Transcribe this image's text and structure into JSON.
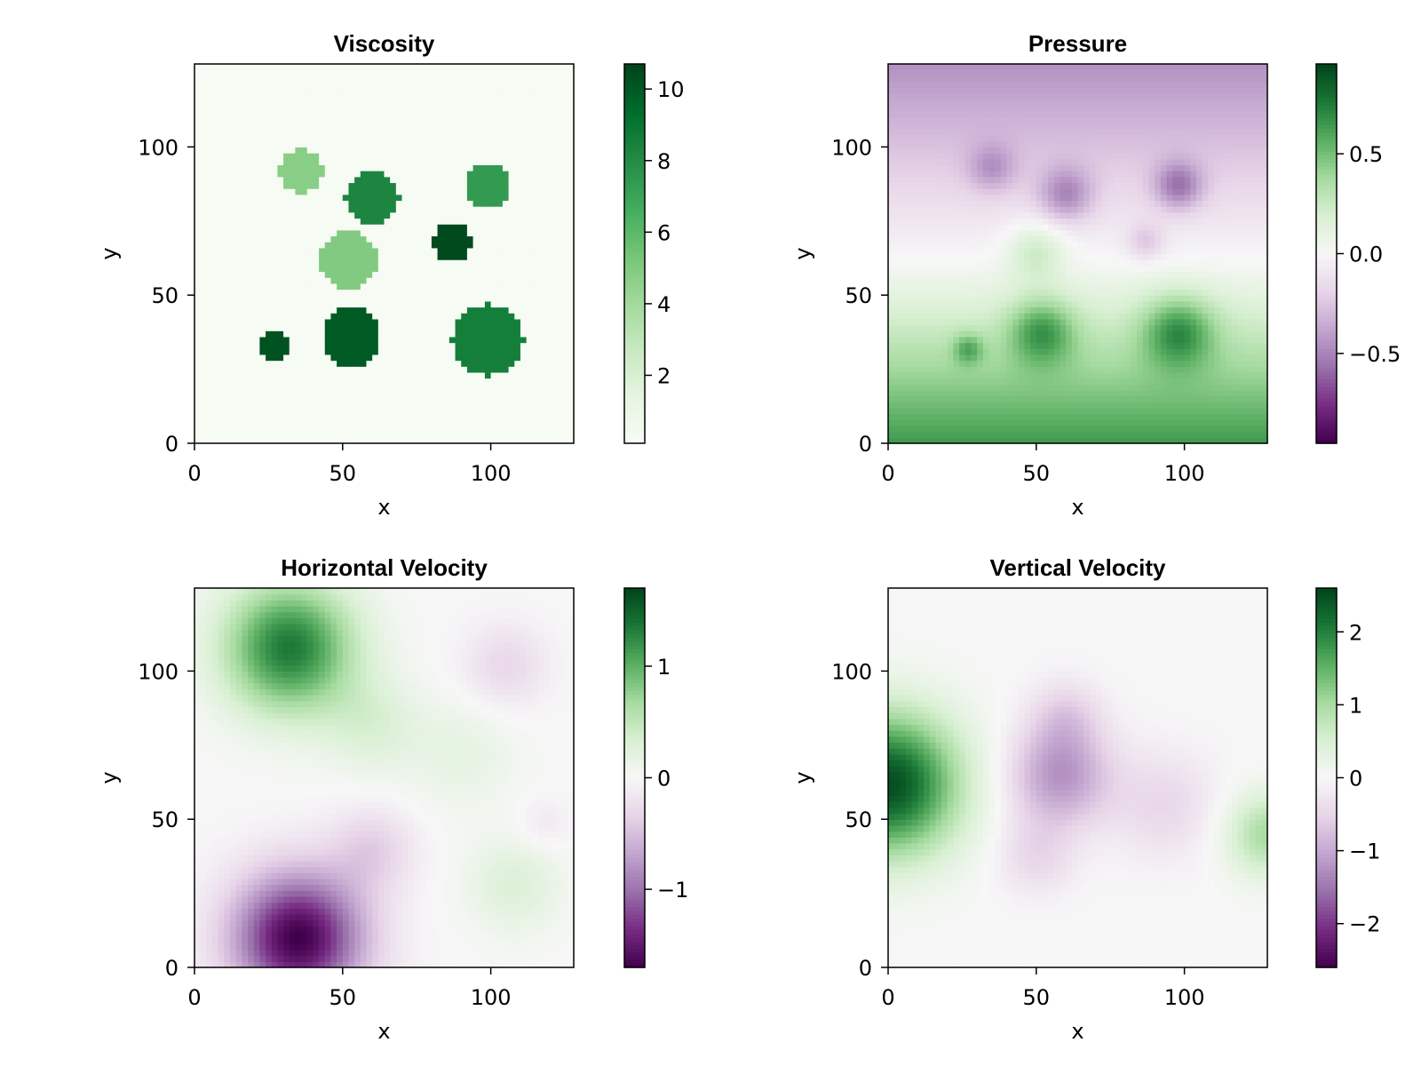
{
  "chart_data": [
    {
      "type": "heatmap",
      "title": "Viscosity",
      "xlabel": "x",
      "ylabel": "y",
      "xlim": [
        0,
        128
      ],
      "ylim": [
        0,
        128
      ],
      "xticks": [
        0,
        50,
        100
      ],
      "yticks": [
        0,
        50,
        100
      ],
      "colormap": [
        "#40004b",
        "#762a83",
        "#9970ab",
        "#c2a5cf",
        "#e7d4e8",
        "#f7f7f7",
        "#d9f0d3",
        "#a6dba0",
        "#5aae61",
        "#1b7837",
        "#00441b"
      ],
      "colorbar": {
        "range": [
          0.1,
          10.7
        ],
        "ticks": [
          2,
          4,
          6,
          8,
          10
        ],
        "tick_labels": [
          "2",
          "4",
          "6",
          "8",
          "10"
        ],
        "colormap": [
          "#f7fcf5",
          "#e5f5e0",
          "#c7e9c0",
          "#a1d99b",
          "#74c476",
          "#41ab5d",
          "#238b45",
          "#006d2c",
          "#00441b"
        ]
      },
      "background": 0.2,
      "inclusions": [
        {
          "x": 36,
          "y": 92,
          "r": 7.5,
          "value": 4.8
        },
        {
          "x": 60,
          "y": 83,
          "r": 9,
          "value": 8.3
        },
        {
          "x": 99,
          "y": 87,
          "r": 7.5,
          "value": 7.4
        },
        {
          "x": 87,
          "y": 68,
          "r": 6.5,
          "value": 10.5
        },
        {
          "x": 52,
          "y": 62,
          "r": 9.5,
          "value": 5.0
        },
        {
          "x": 53,
          "y": 36,
          "r": 10,
          "value": 10.0
        },
        {
          "x": 99,
          "y": 35,
          "r": 12,
          "value": 8.6
        },
        {
          "x": 27,
          "y": 33,
          "r": 4.5,
          "value": 10.2
        }
      ]
    },
    {
      "type": "heatmap",
      "title": "Pressure",
      "xlabel": "x",
      "ylabel": "y",
      "xlim": [
        0,
        128
      ],
      "ylim": [
        0,
        128
      ],
      "xticks": [
        0,
        50,
        100
      ],
      "yticks": [
        0,
        50,
        100
      ],
      "colorbar": {
        "range": [
          -0.95,
          0.95
        ],
        "ticks": [
          0.5,
          0.0,
          -0.5
        ],
        "tick_labels": [
          "0.5",
          "0.0",
          "−0.5"
        ]
      },
      "field": {
        "top_value": -0.45,
        "bottom_value": 0.65,
        "zero_y": 62,
        "blobs": [
          {
            "x": 50,
            "y": 65,
            "r": 10,
            "value": 0.25
          },
          {
            "x": 52,
            "y": 38,
            "r": 11,
            "value": 0.42
          },
          {
            "x": 98,
            "y": 38,
            "r": 12,
            "value": 0.45
          },
          {
            "x": 27,
            "y": 32,
            "r": 5,
            "value": 0.3
          },
          {
            "x": 35,
            "y": 93,
            "r": 8,
            "value": -0.25
          },
          {
            "x": 60,
            "y": 84,
            "r": 9,
            "value": -0.35
          },
          {
            "x": 98,
            "y": 87,
            "r": 8,
            "value": -0.4
          },
          {
            "x": 87,
            "y": 68,
            "r": 6,
            "value": -0.2
          }
        ]
      }
    },
    {
      "type": "heatmap",
      "title": "Horizontal Velocity",
      "xlabel": "x",
      "ylabel": "y",
      "xlim": [
        0,
        128
      ],
      "ylim": [
        0,
        128
      ],
      "xticks": [
        0,
        50,
        100
      ],
      "yticks": [
        0,
        50,
        100
      ],
      "colorbar": {
        "range": [
          -1.7,
          1.7
        ],
        "ticks": [
          1,
          0,
          -1
        ],
        "tick_labels": [
          "1",
          "0",
          "−1"
        ]
      },
      "field": {
        "blobs": [
          {
            "x": 32,
            "y": 108,
            "r": 22,
            "value": 1.35
          },
          {
            "x": 60,
            "y": 82,
            "r": 16,
            "value": 0.3
          },
          {
            "x": 90,
            "y": 72,
            "r": 18,
            "value": 0.2
          },
          {
            "x": 108,
            "y": 28,
            "r": 16,
            "value": 0.3
          },
          {
            "x": 35,
            "y": 10,
            "r": 22,
            "value": -1.7
          },
          {
            "x": 60,
            "y": 40,
            "r": 14,
            "value": -0.35
          },
          {
            "x": 105,
            "y": 102,
            "r": 14,
            "value": -0.3
          },
          {
            "x": 118,
            "y": 48,
            "r": 9,
            "value": -0.15
          }
        ]
      }
    },
    {
      "type": "heatmap",
      "title": "Vertical Velocity",
      "xlabel": "x",
      "ylabel": "y",
      "xlim": [
        0,
        128
      ],
      "ylim": [
        0,
        128
      ],
      "xticks": [
        0,
        50,
        100
      ],
      "yticks": [
        0,
        50,
        100
      ],
      "colorbar": {
        "range": [
          -2.6,
          2.6
        ],
        "ticks": [
          2,
          1,
          0,
          -1,
          -2
        ],
        "tick_labels": [
          "2",
          "1",
          "0",
          "−1",
          "−2"
        ]
      },
      "field": {
        "blobs": [
          {
            "x": 0,
            "y": 62,
            "r": 24,
            "value": 2.5
          },
          {
            "x": 128,
            "y": 45,
            "r": 14,
            "value": 1.0
          },
          {
            "x": 58,
            "y": 65,
            "r": 17,
            "value": -1.2
          },
          {
            "x": 60,
            "y": 85,
            "r": 12,
            "value": -0.5
          },
          {
            "x": 50,
            "y": 38,
            "r": 13,
            "value": -0.45
          },
          {
            "x": 93,
            "y": 55,
            "r": 18,
            "value": -0.45
          }
        ]
      }
    }
  ]
}
